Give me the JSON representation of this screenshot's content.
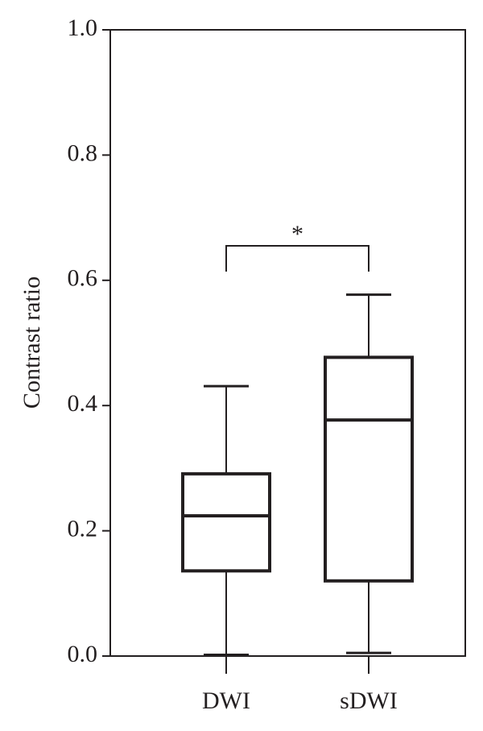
{
  "chart_data": {
    "type": "box",
    "ylabel": "Contrast ratio",
    "categories": [
      "DWI",
      "sDWI"
    ],
    "boxes": [
      {
        "min": 0.002,
        "q1": 0.136,
        "median": 0.224,
        "q3": 0.291,
        "max": 0.431
      },
      {
        "min": 0.005,
        "q1": 0.12,
        "median": 0.377,
        "q3": 0.477,
        "max": 0.577
      }
    ],
    "color": "#231f20",
    "ylim": [
      0,
      1
    ],
    "yticks": [
      {
        "value": 0,
        "label": "0.0"
      },
      0.2,
      0.4,
      0.6,
      0.8,
      {
        "value": 1,
        "label": "1.0"
      }
    ],
    "annotation": "*"
  }
}
